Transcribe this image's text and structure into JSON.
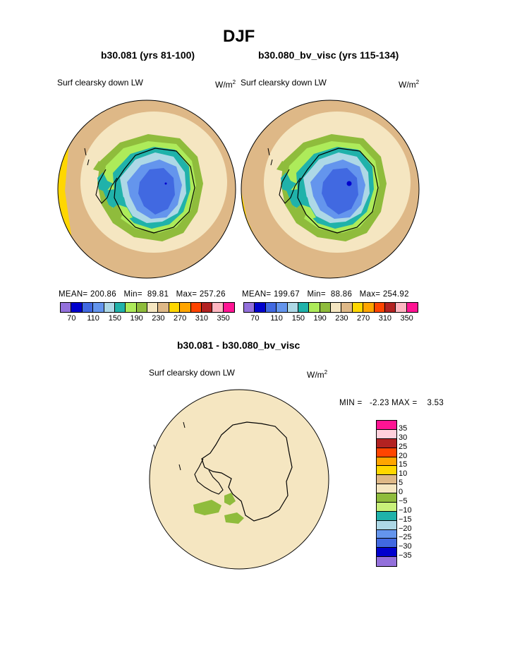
{
  "main_title": "DJF",
  "panels": [
    {
      "subtitle": "b30.081 (yrs 81-100)",
      "left_label": "Surf clearsky down LW",
      "units": "W/m",
      "units_exp": "2",
      "stats": {
        "mean_label": "MEAN=",
        "mean": "200.86",
        "min_label": "Min=",
        "min": "89.81",
        "max_label": "Max=",
        "max": "257.26"
      }
    },
    {
      "subtitle": "b30.080_bv_visc (yrs 115-134)",
      "left_label": "Surf clearsky down LW",
      "units": "W/m",
      "units_exp": "2",
      "stats": {
        "mean_label": "MEAN=",
        "mean": "199.67",
        "min_label": "Min=",
        "min": "88.86",
        "max_label": "Max=",
        "max": "254.92"
      }
    }
  ],
  "field_colorbar": {
    "colors": [
      "#9370db",
      "#0000cd",
      "#4169e1",
      "#6495ed",
      "#add8e6",
      "#20b2aa",
      "#adeb5a",
      "#8fbc3c",
      "#f5e6c1",
      "#deb887",
      "#ffd700",
      "#ffa500",
      "#ff4500",
      "#b22222",
      "#ffb6c1",
      "#ff1493"
    ],
    "tick_labels": [
      "70",
      "110",
      "150",
      "190",
      "230",
      "270",
      "310",
      "350"
    ]
  },
  "diff": {
    "subtitle": "b30.081 - b30.080_bv_visc",
    "left_label": "Surf clearsky down LW",
    "units": "W/m",
    "units_exp": "2",
    "minmax_text": "MIN =   -2.23 MAX =    3.53",
    "colorbar": {
      "colors_top_to_bottom": [
        "#ff1493",
        "#ffd1dc",
        "#b22222",
        "#ff4500",
        "#ffa500",
        "#ffd700",
        "#deb887",
        "#f5e6c1",
        "#8fbc3c",
        "#c8f07a",
        "#20b2aa",
        "#add8e6",
        "#6495ed",
        "#4169e1",
        "#0000cd",
        "#9370db"
      ],
      "tick_labels": [
        "35",
        "30",
        "25",
        "20",
        "15",
        "10",
        "5",
        "0",
        "−10",
        "−15",
        "−20",
        "−25",
        "−30",
        "−35"
      ],
      "minus5_label": "−5"
    }
  }
}
